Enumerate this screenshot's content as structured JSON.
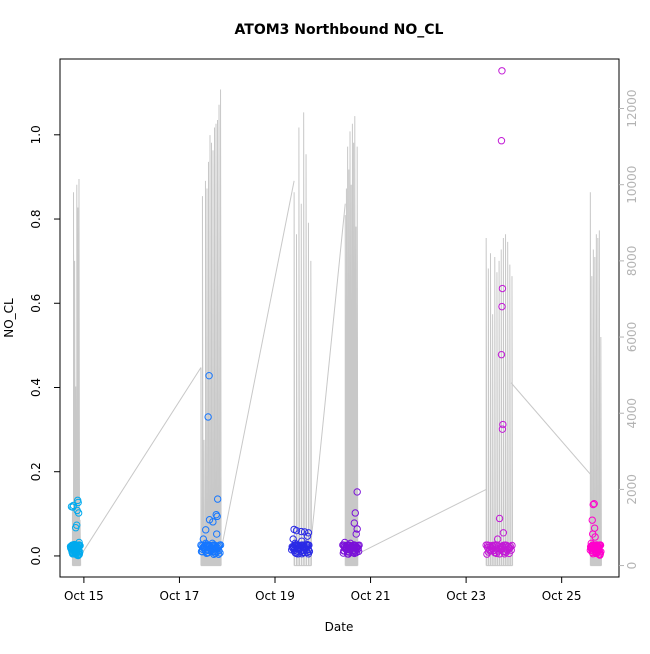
{
  "chart_data": {
    "type": "scatter",
    "title": "ATOM3 Northbound NO_CL",
    "xlabel": "Date",
    "ylabel": "NO_CL",
    "x_ticks": [
      "Oct 15",
      "Oct 17",
      "Oct 19",
      "Oct 21",
      "Oct 23",
      "Oct 25"
    ],
    "xlim_days": [
      14.5,
      26.2
    ],
    "ylim": [
      -0.05,
      1.18
    ],
    "y_ticks": [
      "0.0",
      "0.2",
      "0.4",
      "0.6",
      "0.8",
      "1.0"
    ],
    "y_right_ticks": [
      "0",
      "2000",
      "4000",
      "6000",
      "8000",
      "10000",
      "12000"
    ],
    "y_right_lim": [
      -300,
      13300
    ],
    "grid": false,
    "legend": "none",
    "colors": {
      "plot_frame": "#000000",
      "secondary_line": "#c8c8c8",
      "secondary_axis_text": "#b3b3b3",
      "series_palette": [
        "#00aaee",
        "#1677ff",
        "#2a2ae6",
        "#7a11d8",
        "#c21ad6",
        "#ff00cc"
      ]
    },
    "point_series": [
      {
        "date": "Oct 14-15",
        "x_range": [
          14.72,
          14.92
        ],
        "color": "#00aaee",
        "points": [
          [
            14.74,
            0.117
          ],
          [
            14.77,
            0.116
          ],
          [
            14.78,
            0.12
          ],
          [
            14.8,
            0.027
          ],
          [
            14.83,
            0.067
          ],
          [
            14.85,
            0.073
          ],
          [
            14.87,
            0.132
          ],
          [
            14.88,
            0.127
          ],
          [
            14.86,
            0.108
          ],
          [
            14.89,
            0.102
          ],
          [
            14.9,
            0.032
          ],
          [
            14.76,
            0.008
          ],
          [
            14.79,
            0.005
          ],
          [
            14.82,
            0.012
          ],
          [
            14.84,
            0.004
          ],
          [
            14.86,
            0.002
          ],
          [
            14.88,
            0.001
          ],
          [
            14.9,
            0.003
          ],
          [
            14.78,
            0.018
          ],
          [
            14.81,
            0.01
          ]
        ]
      },
      {
        "date": "Oct 17",
        "x_range": [
          17.45,
          17.86
        ],
        "color": "#1677ff",
        "points": [
          [
            17.62,
            0.428
          ],
          [
            17.6,
            0.33
          ],
          [
            17.8,
            0.135
          ],
          [
            17.77,
            0.098
          ],
          [
            17.79,
            0.094
          ],
          [
            17.63,
            0.086
          ],
          [
            17.7,
            0.081
          ],
          [
            17.78,
            0.052
          ],
          [
            17.55,
            0.062
          ],
          [
            17.5,
            0.04
          ],
          [
            17.48,
            0.01
          ],
          [
            17.52,
            0.02
          ],
          [
            17.55,
            0.03
          ],
          [
            17.58,
            0.015
          ],
          [
            17.6,
            0.008
          ],
          [
            17.63,
            0.025
          ],
          [
            17.66,
            0.012
          ],
          [
            17.69,
            0.03
          ],
          [
            17.72,
            0.018
          ],
          [
            17.75,
            0.006
          ],
          [
            17.78,
            0.01
          ],
          [
            17.82,
            0.004
          ]
        ]
      },
      {
        "date": "Oct 19",
        "x_range": [
          19.35,
          19.72
        ],
        "color": "#2a2ae6",
        "points": [
          [
            19.4,
            0.063
          ],
          [
            19.45,
            0.06
          ],
          [
            19.55,
            0.058
          ],
          [
            19.62,
            0.057
          ],
          [
            19.7,
            0.055
          ],
          [
            19.68,
            0.047
          ],
          [
            19.38,
            0.04
          ],
          [
            19.42,
            0.03
          ],
          [
            19.46,
            0.018
          ],
          [
            19.5,
            0.025
          ],
          [
            19.54,
            0.012
          ],
          [
            19.58,
            0.02
          ],
          [
            19.62,
            0.008
          ],
          [
            19.66,
            0.028
          ],
          [
            19.7,
            0.015
          ],
          [
            19.48,
            0.005
          ],
          [
            19.56,
            0.035
          ]
        ]
      },
      {
        "date": "Oct 20-21",
        "x_range": [
          20.42,
          20.76
        ],
        "color": "#7a11d8",
        "points": [
          [
            20.72,
            0.152
          ],
          [
            20.68,
            0.102
          ],
          [
            20.66,
            0.078
          ],
          [
            20.72,
            0.064
          ],
          [
            20.7,
            0.052
          ],
          [
            20.46,
            0.032
          ],
          [
            20.5,
            0.025
          ],
          [
            20.54,
            0.015
          ],
          [
            20.58,
            0.03
          ],
          [
            20.62,
            0.01
          ],
          [
            20.66,
            0.02
          ],
          [
            20.7,
            0.008
          ],
          [
            20.74,
            0.018
          ],
          [
            20.44,
            0.012
          ],
          [
            20.52,
            0.005
          ]
        ]
      },
      {
        "date": "Oct 23",
        "x_range": [
          23.42,
          23.96
        ],
        "color": "#c21ad6",
        "points": [
          [
            23.75,
            1.152
          ],
          [
            23.74,
            0.986
          ],
          [
            23.76,
            0.635
          ],
          [
            23.75,
            0.592
          ],
          [
            23.74,
            0.478
          ],
          [
            23.77,
            0.312
          ],
          [
            23.76,
            0.301
          ],
          [
            23.7,
            0.089
          ],
          [
            23.66,
            0.04
          ],
          [
            23.78,
            0.055
          ],
          [
            23.45,
            0.02
          ],
          [
            23.5,
            0.012
          ],
          [
            23.55,
            0.025
          ],
          [
            23.6,
            0.008
          ],
          [
            23.65,
            0.018
          ],
          [
            23.7,
            0.005
          ],
          [
            23.75,
            0.022
          ],
          [
            23.8,
            0.01
          ],
          [
            23.85,
            0.015
          ],
          [
            23.9,
            0.006
          ]
        ]
      },
      {
        "date": "Oct 25",
        "x_range": [
          25.6,
          25.82
        ],
        "color": "#ff00cc",
        "points": [
          [
            25.66,
            0.122
          ],
          [
            25.68,
            0.124
          ],
          [
            25.64,
            0.085
          ],
          [
            25.69,
            0.066
          ],
          [
            25.65,
            0.052
          ],
          [
            25.7,
            0.045
          ],
          [
            25.62,
            0.03
          ],
          [
            25.66,
            0.02
          ],
          [
            25.7,
            0.012
          ],
          [
            25.74,
            0.008
          ],
          [
            25.78,
            0.004
          ],
          [
            25.8,
            0.002
          ],
          [
            25.72,
            0.016
          ],
          [
            25.76,
            0.01
          ]
        ]
      }
    ],
    "secondary_series": {
      "axis": "right",
      "segments": [
        {
          "x_range": [
            14.76,
            14.92
          ],
          "peaks": [
            1500,
            9800,
            8000,
            4700,
            10000,
            9400,
            10150,
            1200
          ]
        },
        {
          "x_range": [
            17.45,
            17.86
          ],
          "peaks": [
            5200,
            9700,
            3300,
            10100,
            9900,
            10600,
            11300,
            11100,
            10900,
            11500,
            11600,
            11700,
            12100,
            12500
          ]
        },
        {
          "x_range": [
            19.4,
            19.75
          ],
          "peaks": [
            9800,
            8700,
            11500,
            9500,
            11900,
            10800,
            9000,
            8000
          ]
        },
        {
          "x_range": [
            20.47,
            20.72
          ],
          "peaks": [
            9200,
            9900,
            11000,
            10400,
            11400,
            10000,
            11600,
            11100,
            11800,
            8900,
            11000
          ]
        },
        {
          "x_range": [
            23.42,
            23.96
          ],
          "peaks": [
            8600,
            7800,
            8200,
            6600,
            8100,
            7700,
            8000,
            8300,
            8600,
            8700,
            8500,
            7900,
            7600
          ]
        },
        {
          "x_range": [
            25.6,
            25.82
          ],
          "peaks": [
            9800,
            7600,
            8300,
            8100,
            8700,
            8600,
            8800,
            6000
          ]
        }
      ],
      "connectors": [
        [
          [
            14.9,
            200
          ],
          [
            17.45,
            5200
          ]
        ],
        [
          [
            17.84,
            200
          ],
          [
            19.4,
            10100
          ]
        ],
        [
          [
            19.72,
            200
          ],
          [
            20.47,
            9500
          ]
        ],
        [
          [
            20.72,
            300
          ],
          [
            23.42,
            2000
          ]
        ],
        [
          [
            23.94,
            4800
          ],
          [
            25.6,
            2400
          ]
        ]
      ]
    }
  }
}
